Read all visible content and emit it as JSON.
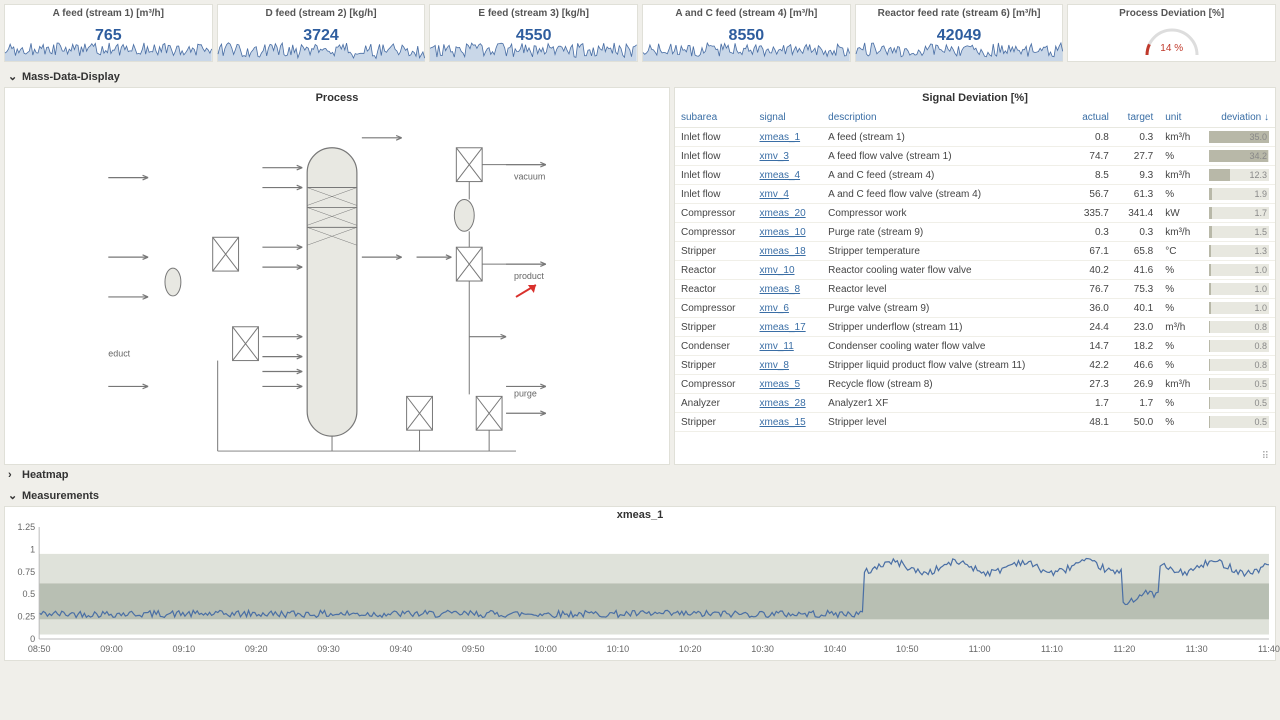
{
  "colors": {
    "bg": "#f0efea",
    "card_bg": "#ffffff",
    "border": "#e0e0d8",
    "accent_blue": "#2e5d9e",
    "link_blue": "#3a6ea5",
    "spark_line": "#4a6fa5",
    "spark_fill": "#c9d7e8",
    "gauge_arc": "#c0392b",
    "band_dark": "#b8bfb3",
    "band_light": "#dfe2da",
    "line_series": "#4a6fa5",
    "devbar_bg": "#e8e8e0",
    "devbar_fg": "#b8b8a8"
  },
  "sparklines": [
    {
      "id": "a-feed",
      "title": "A feed (stream 1) [m³/h]",
      "value": "765",
      "mean": 0.45,
      "noise": 0.25
    },
    {
      "id": "d-feed",
      "title": "D feed (stream 2) [kg/h]",
      "value": "3724",
      "mean": 0.4,
      "noise": 0.3
    },
    {
      "id": "e-feed",
      "title": "E feed (stream 3) [kg/h]",
      "value": "4550",
      "mean": 0.42,
      "noise": 0.28
    },
    {
      "id": "ac-feed",
      "title": "A and C feed (stream 4) [m³/h]",
      "value": "8550",
      "mean": 0.44,
      "noise": 0.26
    },
    {
      "id": "reactor-rate",
      "title": "Reactor feed rate (stream 6) [m³/h]",
      "value": "42049",
      "mean": 0.43,
      "noise": 0.27
    }
  ],
  "deviation_gauge": {
    "title": "Process Deviation [%]",
    "value": 14,
    "label": "14 %"
  },
  "sections": {
    "mass_data": {
      "label": "Mass-Data-Display",
      "open": true
    },
    "heatmap": {
      "label": "Heatmap",
      "open": false
    },
    "measure": {
      "label": "Measurements",
      "open": true
    }
  },
  "process_panel": {
    "title": "Process",
    "labels": {
      "vacuum": "vacuum",
      "product": "product",
      "educt": "educt",
      "purge": "purge"
    }
  },
  "deviation_table": {
    "title": "Signal Deviation [%]",
    "columns": {
      "subarea": "subarea",
      "signal": "signal",
      "description": "description",
      "actual": "actual",
      "target": "target",
      "unit": "unit",
      "deviation": "deviation ↓"
    },
    "max_deviation": 35.0,
    "rows": [
      {
        "subarea": "Inlet flow",
        "signal": "xmeas_1",
        "description": "A feed (stream 1)",
        "actual": "0.8",
        "target": "0.3",
        "unit": "km³/h",
        "deviation": 35.0
      },
      {
        "subarea": "Inlet flow",
        "signal": "xmv_3",
        "description": "A feed flow valve (stream 1)",
        "actual": "74.7",
        "target": "27.7",
        "unit": "%",
        "deviation": 34.2
      },
      {
        "subarea": "Inlet flow",
        "signal": "xmeas_4",
        "description": "A and C feed (stream 4)",
        "actual": "8.5",
        "target": "9.3",
        "unit": "km³/h",
        "deviation": 12.3
      },
      {
        "subarea": "Inlet flow",
        "signal": "xmv_4",
        "description": "A and C feed flow valve (stream 4)",
        "actual": "56.7",
        "target": "61.3",
        "unit": "%",
        "deviation": 1.9
      },
      {
        "subarea": "Compressor",
        "signal": "xmeas_20",
        "description": "Compressor work",
        "actual": "335.7",
        "target": "341.4",
        "unit": "kW",
        "deviation": 1.7
      },
      {
        "subarea": "Compressor",
        "signal": "xmeas_10",
        "description": "Purge rate (stream 9)",
        "actual": "0.3",
        "target": "0.3",
        "unit": "km³/h",
        "deviation": 1.5
      },
      {
        "subarea": "Stripper",
        "signal": "xmeas_18",
        "description": "Stripper temperature",
        "actual": "67.1",
        "target": "65.8",
        "unit": "°C",
        "deviation": 1.3
      },
      {
        "subarea": "Reactor",
        "signal": "xmv_10",
        "description": "Reactor cooling water flow valve",
        "actual": "40.2",
        "target": "41.6",
        "unit": "%",
        "deviation": 1.0
      },
      {
        "subarea": "Reactor",
        "signal": "xmeas_8",
        "description": "Reactor level",
        "actual": "76.7",
        "target": "75.3",
        "unit": "%",
        "deviation": 1.0
      },
      {
        "subarea": "Compressor",
        "signal": "xmv_6",
        "description": "Purge valve (stream 9)",
        "actual": "36.0",
        "target": "40.1",
        "unit": "%",
        "deviation": 1.0
      },
      {
        "subarea": "Stripper",
        "signal": "xmeas_17",
        "description": "Stripper underflow (stream 11)",
        "actual": "24.4",
        "target": "23.0",
        "unit": "m³/h",
        "deviation": 0.8
      },
      {
        "subarea": "Condenser",
        "signal": "xmv_11",
        "description": "Condenser cooling water flow valve",
        "actual": "14.7",
        "target": "18.2",
        "unit": "%",
        "deviation": 0.8
      },
      {
        "subarea": "Stripper",
        "signal": "xmv_8",
        "description": "Stripper liquid product flow valve (stream 11)",
        "actual": "42.2",
        "target": "46.6",
        "unit": "%",
        "deviation": 0.8
      },
      {
        "subarea": "Compressor",
        "signal": "xmeas_5",
        "description": "Recycle flow (stream 8)",
        "actual": "27.3",
        "target": "26.9",
        "unit": "km³/h",
        "deviation": 0.5
      },
      {
        "subarea": "Analyzer",
        "signal": "xmeas_28",
        "description": "Analyzer1 XF",
        "actual": "1.7",
        "target": "1.7",
        "unit": "%",
        "deviation": 0.5
      },
      {
        "subarea": "Stripper",
        "signal": "xmeas_15",
        "description": "Stripper level",
        "actual": "48.1",
        "target": "50.0",
        "unit": "%",
        "deviation": 0.5
      }
    ]
  },
  "measurements_chart": {
    "title": "xmeas_1",
    "ylim": [
      0,
      1.25
    ],
    "yticks": [
      0,
      0.25,
      0.5,
      0.75,
      1,
      1.25
    ],
    "xticks": [
      "08:50",
      "09:00",
      "09:10",
      "09:20",
      "09:30",
      "09:40",
      "09:50",
      "10:00",
      "10:10",
      "10:20",
      "10:30",
      "10:40",
      "10:50",
      "11:00",
      "11:10",
      "11:20",
      "11:30",
      "11:40"
    ],
    "band_outer": [
      0.05,
      0.95
    ],
    "band_inner": [
      0.22,
      0.62
    ],
    "series_baseline": 0.28,
    "series_step_at": 0.67,
    "series_step_to": 0.8,
    "series_dip_at": 0.88,
    "series_dip_to": 0.45,
    "noise": 0.04
  }
}
